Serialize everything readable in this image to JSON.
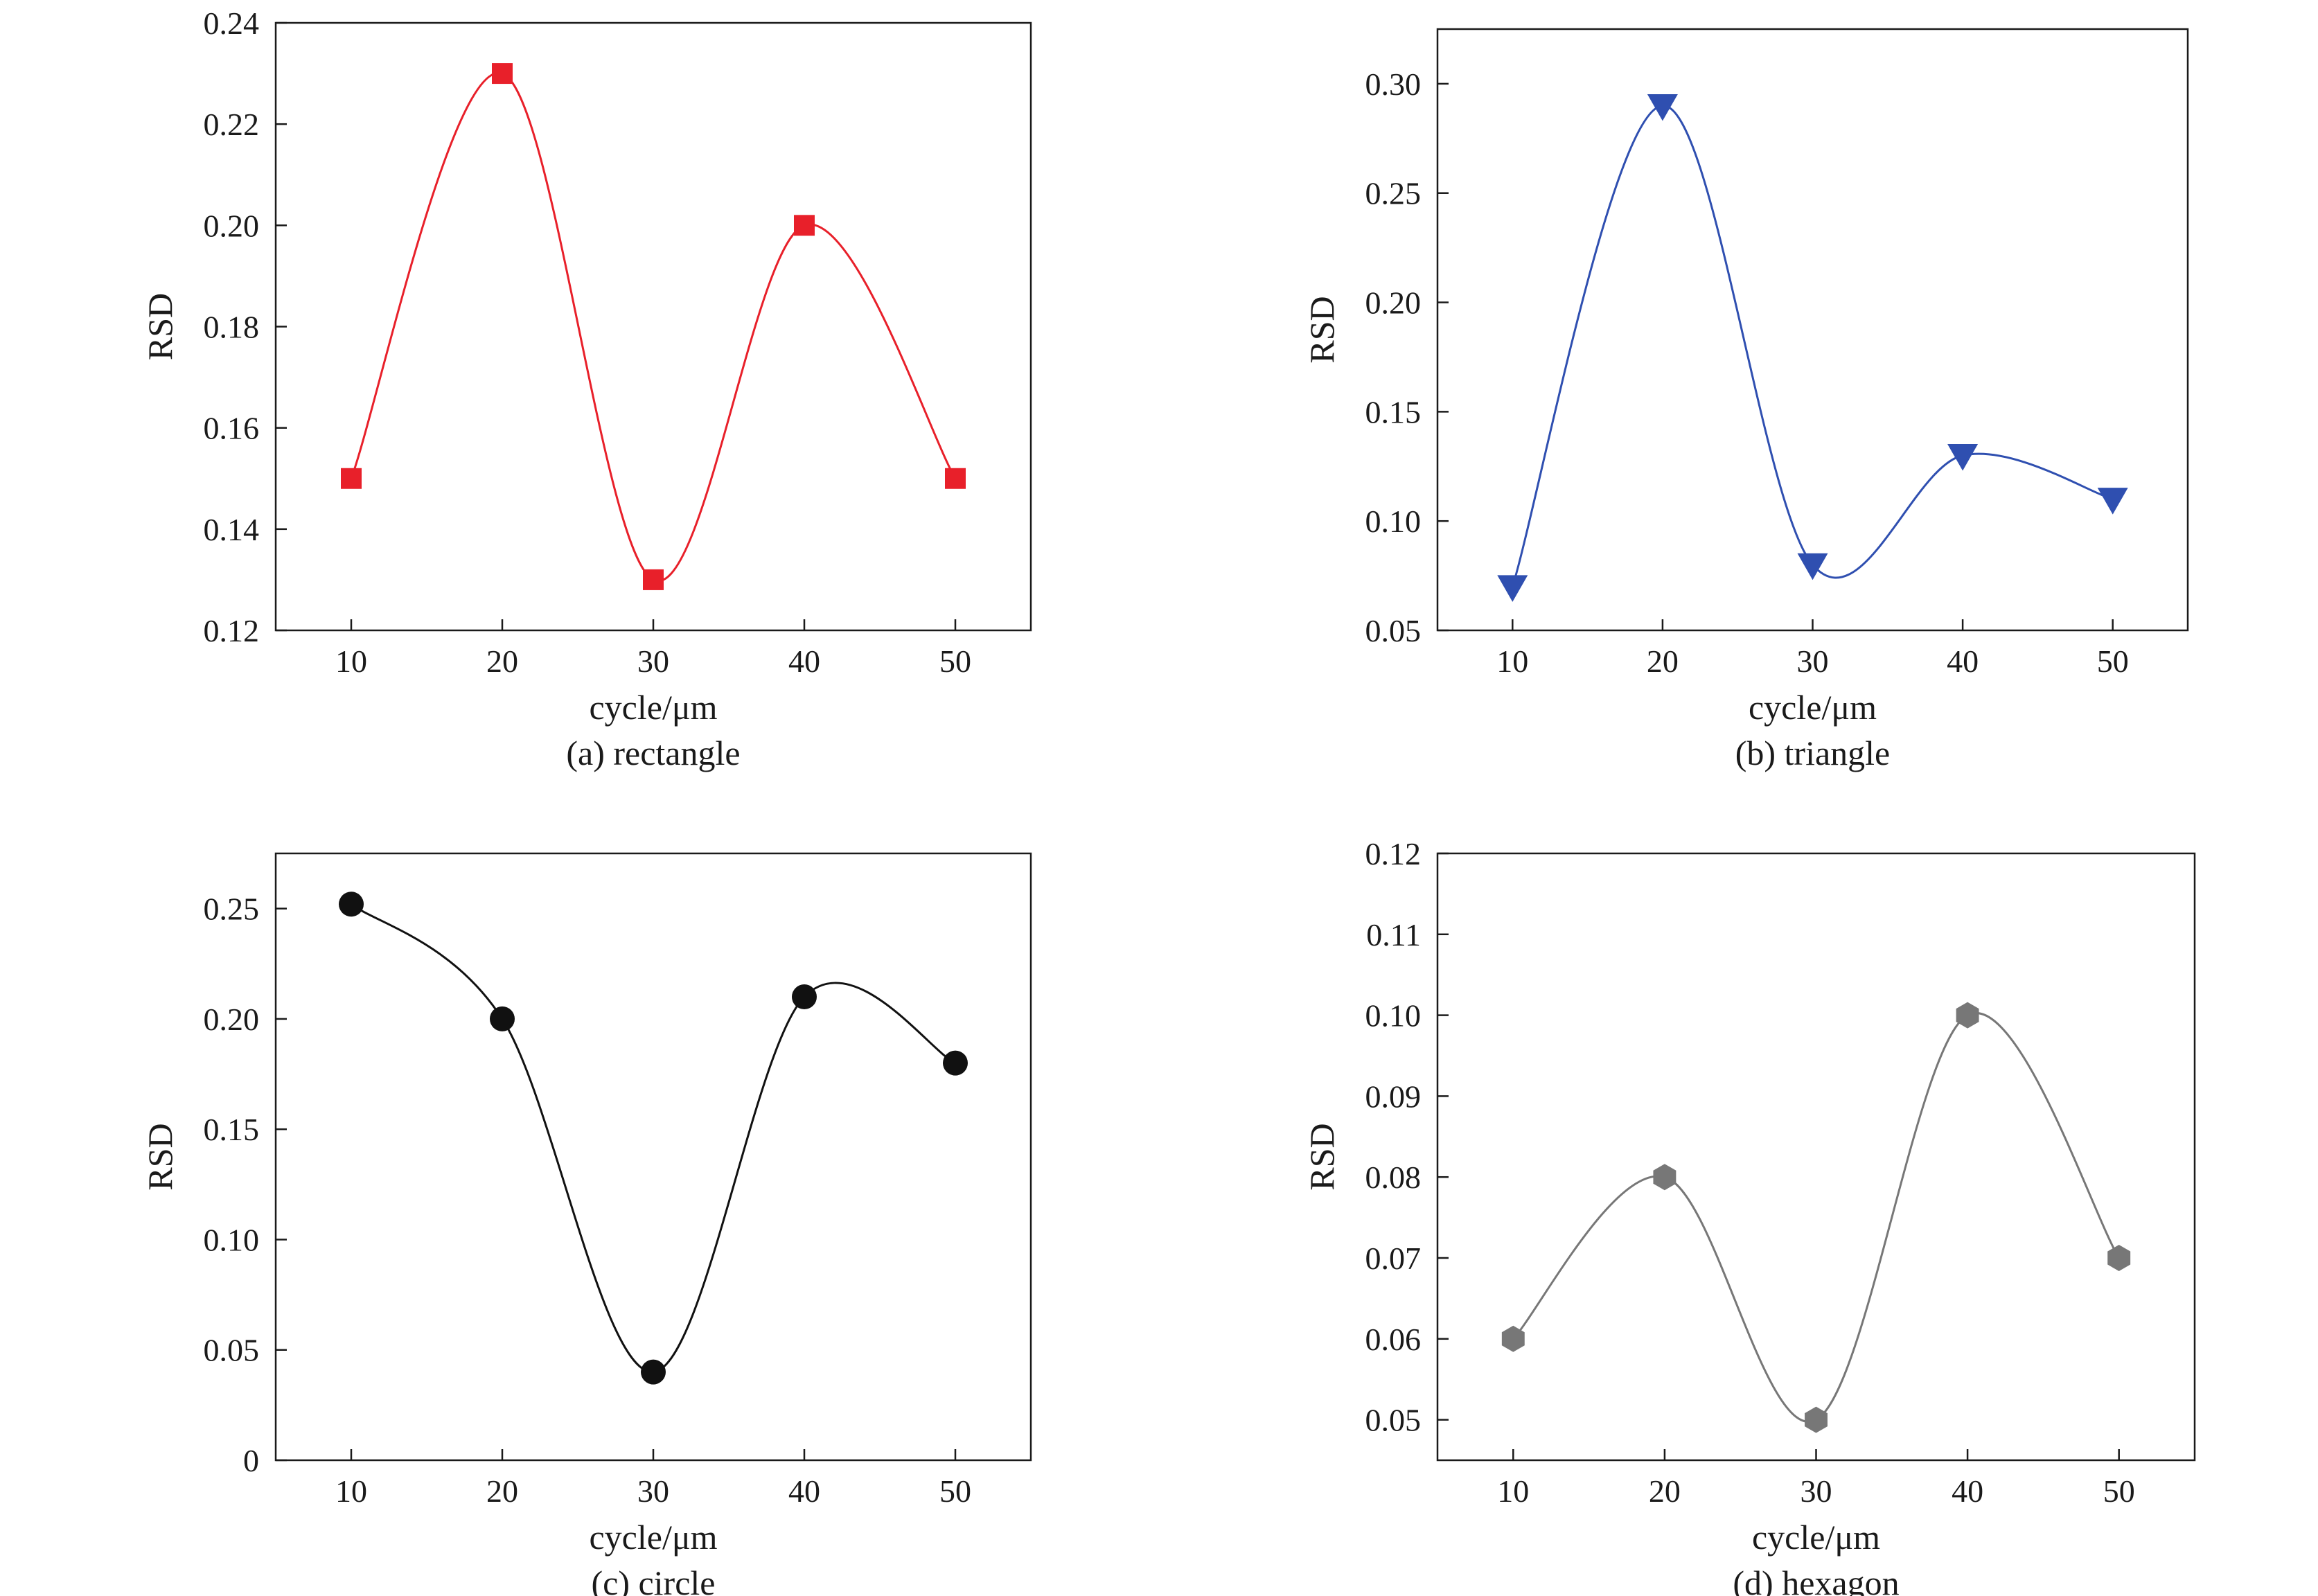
{
  "chart_data": [
    {
      "type": "line",
      "caption": "(a) rectangle",
      "xlabel": "cycle/μm",
      "ylabel": "RSD",
      "x": [
        10,
        20,
        30,
        40,
        50
      ],
      "x_ticks": [
        "10",
        "20",
        "30",
        "40",
        "50"
      ],
      "y_ticks": [
        "0.12",
        "0.14",
        "0.16",
        "0.18",
        "0.20",
        "0.22",
        "0.24"
      ],
      "xlim": [
        5,
        55
      ],
      "ylim": [
        0.12,
        0.24
      ],
      "series": [
        {
          "values": [
            0.15,
            0.23,
            0.13,
            0.2,
            0.15
          ]
        }
      ],
      "marker": "square",
      "color": "#e8202a",
      "grid": false,
      "smooth": true
    },
    {
      "type": "line",
      "caption": "(b) triangle",
      "xlabel": "cycle/μm",
      "ylabel": "RSD",
      "x": [
        10,
        20,
        30,
        40,
        50
      ],
      "x_ticks": [
        "10",
        "20",
        "30",
        "40",
        "50"
      ],
      "y_ticks": [
        "0.05",
        "0.10",
        "0.15",
        "0.20",
        "0.25",
        "0.30"
      ],
      "xlim": [
        5,
        55
      ],
      "ylim": [
        0.05,
        0.325
      ],
      "series": [
        {
          "values": [
            0.07,
            0.29,
            0.08,
            0.13,
            0.11
          ]
        }
      ],
      "marker": "triangle-down",
      "color": "#2f4fb0",
      "grid": false,
      "smooth": true
    },
    {
      "type": "line",
      "caption": "(c) circle",
      "xlabel": "cycle/μm",
      "ylabel": "RSD",
      "x": [
        10,
        20,
        30,
        40,
        50
      ],
      "x_ticks": [
        "10",
        "20",
        "30",
        "40",
        "50"
      ],
      "y_ticks": [
        "0",
        "0.05",
        "0.10",
        "0.15",
        "0.20",
        "0.25"
      ],
      "xlim": [
        5,
        55
      ],
      "ylim": [
        0,
        0.275
      ],
      "series": [
        {
          "values": [
            0.252,
            0.2,
            0.04,
            0.21,
            0.18
          ]
        }
      ],
      "marker": "circle",
      "color": "#111111",
      "grid": false,
      "smooth": true
    },
    {
      "type": "line",
      "caption": "(d) hexagon",
      "xlabel": "cycle/μm",
      "ylabel": "RSD",
      "x": [
        10,
        20,
        30,
        40,
        50
      ],
      "x_ticks": [
        "10",
        "20",
        "30",
        "40",
        "50"
      ],
      "y_ticks": [
        "0.05",
        "0.06",
        "0.07",
        "0.08",
        "0.09",
        "0.10",
        "0.11",
        "0.12"
      ],
      "xlim": [
        5,
        55
      ],
      "ylim": [
        0.045,
        0.12
      ],
      "series": [
        {
          "values": [
            0.06,
            0.08,
            0.05,
            0.1,
            0.07
          ]
        }
      ],
      "marker": "hexagon",
      "color": "#777777",
      "grid": false,
      "smooth": true
    }
  ]
}
